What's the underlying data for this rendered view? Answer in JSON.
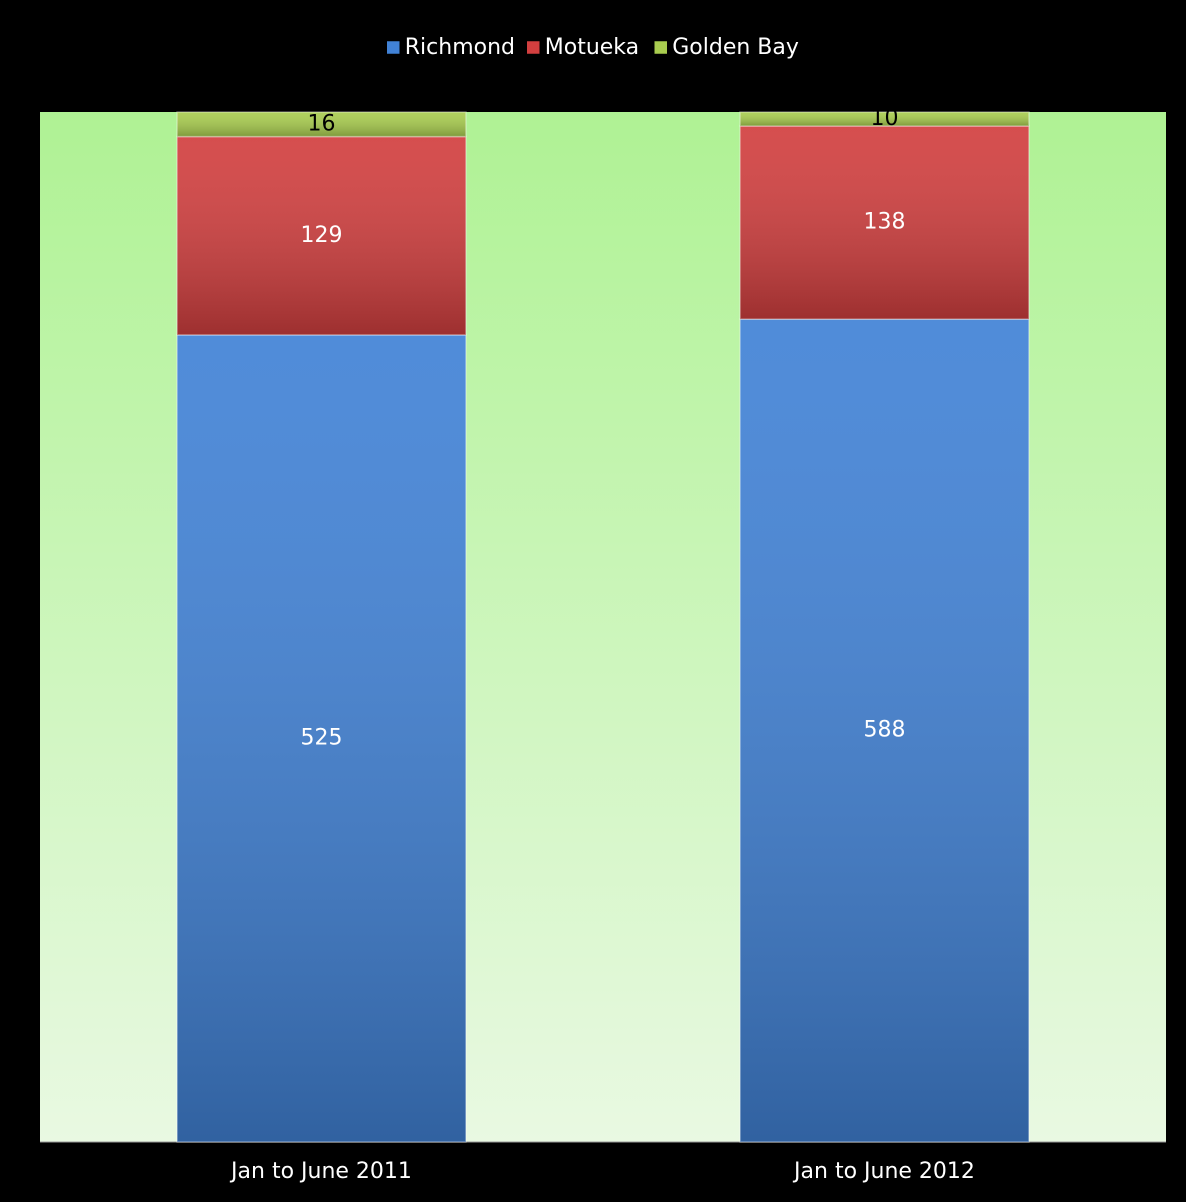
{
  "chart_data": {
    "type": "bar",
    "stacking": "percent",
    "categories": [
      "Jan to June 2011",
      "Jan to June 2012"
    ],
    "series": [
      {
        "name": "Richmond",
        "color": "#4182d6",
        "values": [
          525,
          588
        ]
      },
      {
        "name": "Motueka",
        "color": "#d23f3f",
        "values": [
          129,
          138
        ]
      },
      {
        "name": "Golden Bay",
        "color": "#a9cd4f",
        "values": [
          16,
          10
        ]
      }
    ],
    "legend": "top"
  }
}
